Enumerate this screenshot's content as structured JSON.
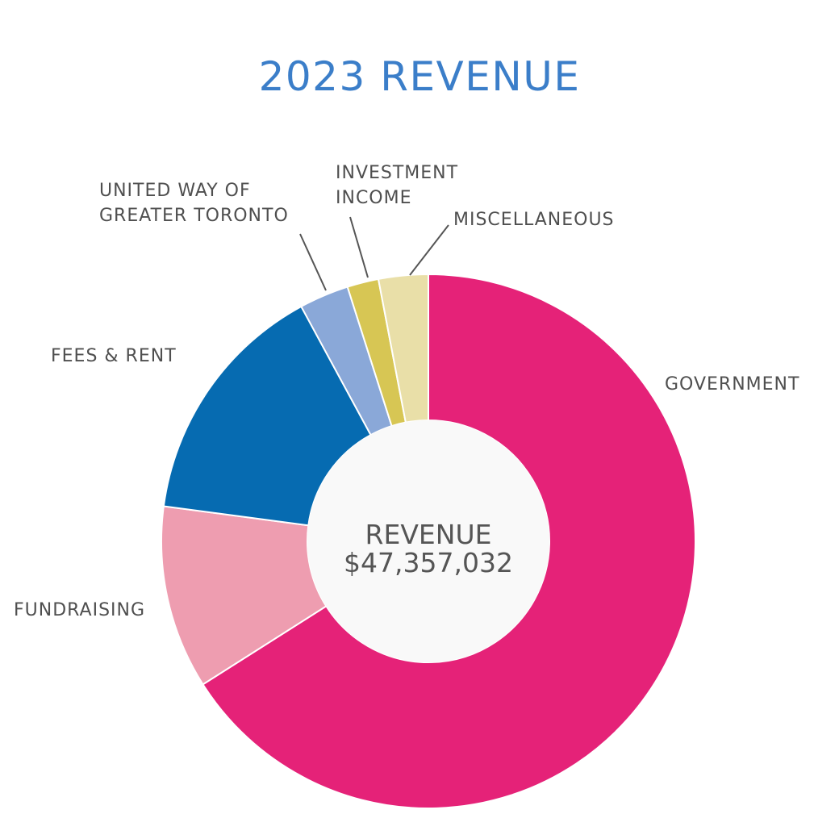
{
  "chart_data": {
    "type": "pie",
    "title": "2023 REVENUE",
    "center_label": [
      "REVENUE",
      "$47,357,032"
    ],
    "slices": [
      {
        "label": "GOVERNMENT",
        "value": 66.0,
        "color": "#e52278"
      },
      {
        "label": "FUNDRAISING",
        "value": 11.1,
        "color": "#ee9db0"
      },
      {
        "label": "FEES & RENT",
        "value": 15.0,
        "color": "#066bb1"
      },
      {
        "label": "UNITED WAY OF GREATER TORONTO",
        "label_lines": [
          "UNITED WAY OF",
          "GREATER TORONTO"
        ],
        "value": 3.0,
        "color": "#8aa8d8"
      },
      {
        "label": "INVESTMENT INCOME",
        "label_lines": [
          "INVESTMENT",
          "INCOME"
        ],
        "value": 1.9,
        "color": "#d7c654"
      },
      {
        "label": "MISCELLANEOUS",
        "value": 3.0,
        "color": "#e9dfa8"
      }
    ],
    "style": {
      "title_color": "#3b7ec9",
      "center_fill": "#f9f9f9",
      "slice_separator": "#ffffff"
    }
  }
}
